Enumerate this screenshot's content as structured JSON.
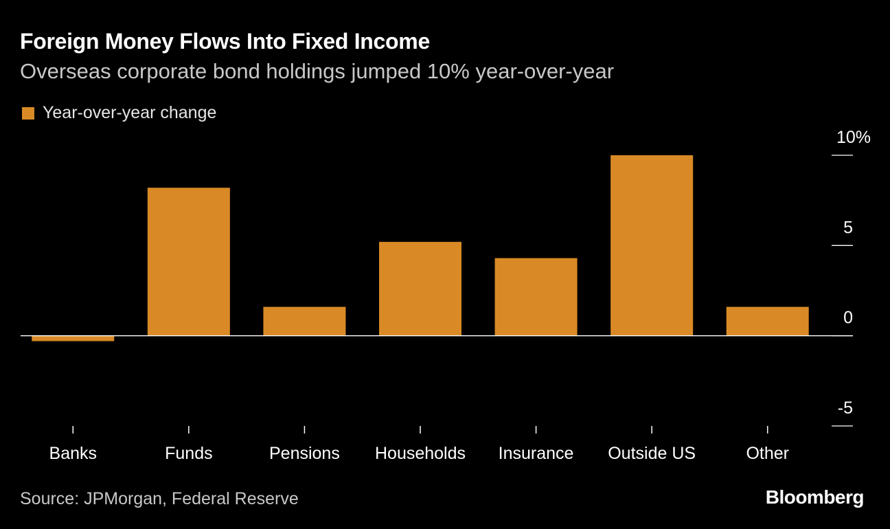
{
  "title": "Foreign Money Flows Into Fixed Income",
  "subtitle": "Overseas corporate bond holdings jumped 10% year-over-year",
  "source": "Source: JPMorgan, Federal Reserve",
  "brand": "Bloomberg",
  "colors": {
    "background": "#000000",
    "bar": "#d98a26",
    "text": "#ffffff",
    "muted_text": "#c8c8c8",
    "axis": "#ffffff"
  },
  "chart_data": {
    "type": "bar",
    "categories": [
      "Banks",
      "Funds",
      "Pensions",
      "Households",
      "Insurance",
      "Outside US",
      "Other"
    ],
    "series": [
      {
        "name": "Year-over-year change",
        "values": [
          -0.3,
          8.2,
          1.6,
          5.2,
          4.3,
          10.0,
          1.6
        ]
      }
    ],
    "ylim": [
      -5,
      10
    ],
    "yticks": [
      10,
      5,
      0,
      -5
    ],
    "ytick_labels": [
      "10%",
      "5",
      "0",
      "-5"
    ],
    "xlabel": "",
    "ylabel": "",
    "legend_position": "top-left",
    "grid": false
  }
}
